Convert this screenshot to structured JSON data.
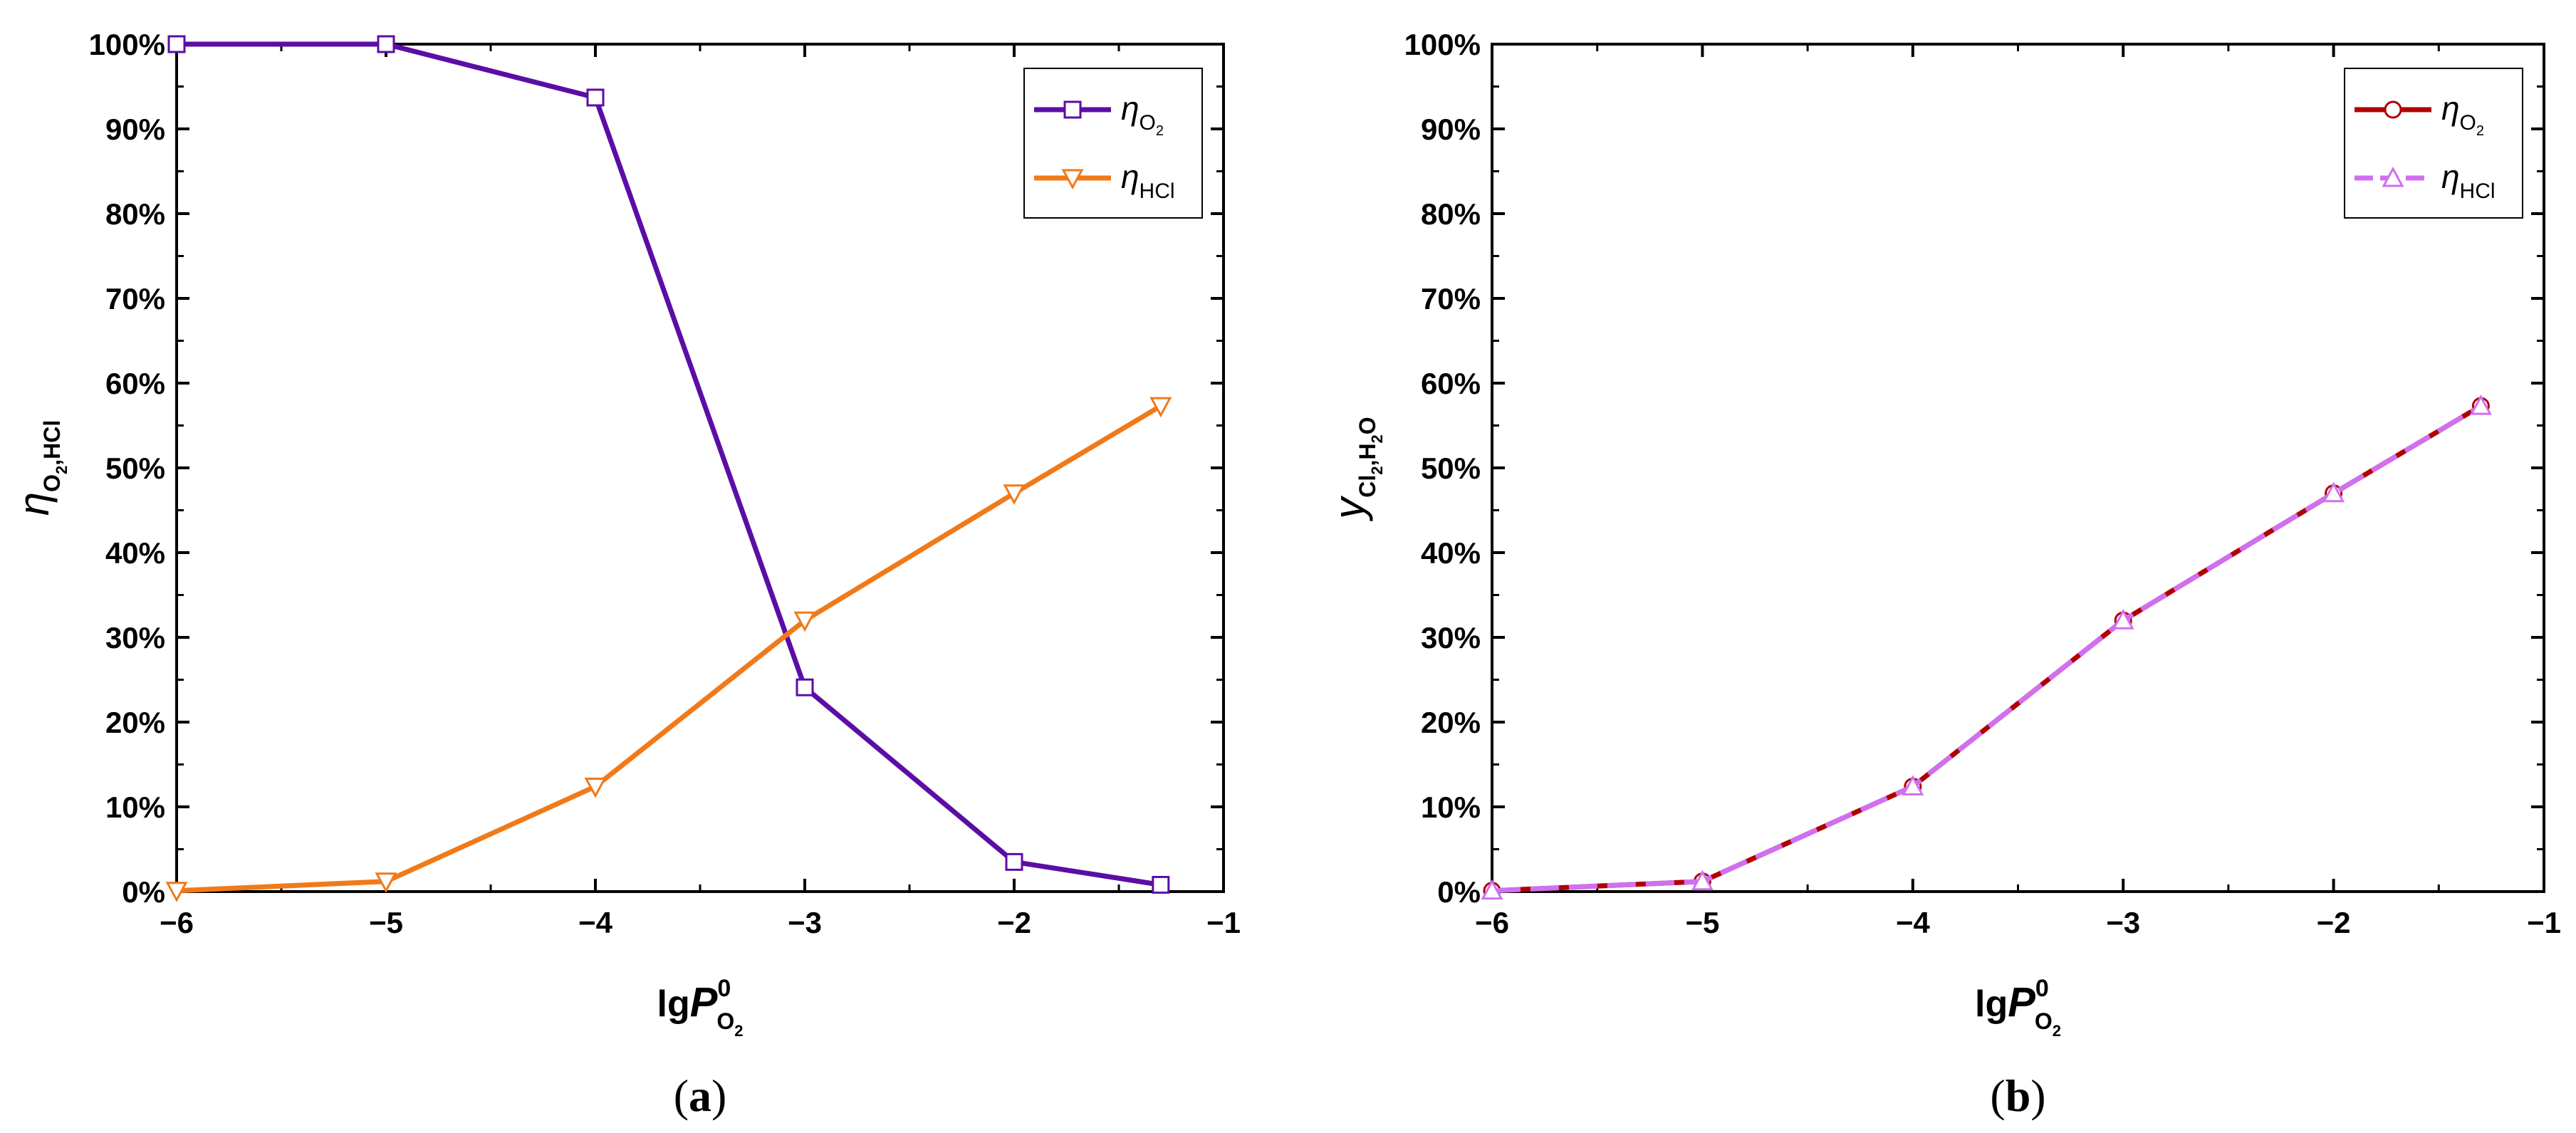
{
  "chart_data": [
    {
      "type": "line",
      "panel_label": "(a)",
      "xlabel": {
        "main": "lg",
        "var": "P",
        "sup": "0",
        "sub": "O",
        "subsub": "2"
      },
      "ylabel": {
        "sym": "η",
        "sub_a": "O",
        "sub_a_idx": "2",
        "sub_b": ",HCl"
      },
      "xlim": [
        -6,
        -1
      ],
      "ylim": [
        0,
        100
      ],
      "xticks": [
        "−6",
        "−5",
        "−4",
        "−3",
        "−2",
        "−1"
      ],
      "yticks": [
        "0%",
        "10%",
        "20%",
        "30%",
        "40%",
        "50%",
        "60%",
        "70%",
        "80%",
        "90%",
        "100%"
      ],
      "legend_position": "top-right",
      "series": [
        {
          "name": "ηO2",
          "sym": "η",
          "sub": "O",
          "subidx": "2",
          "color": "#5b0ea6",
          "marker": "square",
          "dash": "solid",
          "x": [
            -6,
            -5,
            -4,
            -3,
            -2,
            -1.3
          ],
          "values": [
            100,
            100,
            93.7,
            24.1,
            3.5,
            0.8
          ]
        },
        {
          "name": "ηHCl",
          "sym": "η",
          "sub": "HCl",
          "subidx": "",
          "color": "#f07a1a",
          "marker": "triangle-down",
          "dash": "solid",
          "x": [
            -6,
            -5,
            -4,
            -3,
            -2,
            -1.3
          ],
          "values": [
            0.1,
            1.2,
            12.4,
            32.0,
            47.0,
            57.3
          ]
        }
      ]
    },
    {
      "type": "line",
      "panel_label": "(b)",
      "xlabel": {
        "main": "lg",
        "var": "P",
        "sup": "0",
        "sub": "O",
        "subsub": "2"
      },
      "ylabel": {
        "sym": "y",
        "sub_a": "Cl",
        "sub_a_idx": "2",
        "sub_b": ",H",
        "sub_b_idx": "2",
        "sub_c": "O"
      },
      "xlim": [
        -6,
        -1
      ],
      "ylim": [
        0,
        100
      ],
      "xticks": [
        "−6",
        "−5",
        "−4",
        "−3",
        "−2",
        "−1"
      ],
      "yticks": [
        "0%",
        "10%",
        "20%",
        "30%",
        "40%",
        "50%",
        "60%",
        "70%",
        "80%",
        "90%",
        "100%"
      ],
      "legend_position": "top-right",
      "series": [
        {
          "name": "ηO2",
          "sym": "η",
          "sub": "O",
          "subidx": "2",
          "color": "#b00000",
          "marker": "circle",
          "dash": "solid",
          "x": [
            -6,
            -5,
            -4,
            -3,
            -2,
            -1.3
          ],
          "values": [
            0.1,
            1.2,
            12.4,
            32.0,
            47.0,
            57.3
          ]
        },
        {
          "name": "ηHCl",
          "sym": "η",
          "sub": "HCl",
          "subidx": "",
          "color": "#d070f0",
          "marker": "triangle-up",
          "dash": "dashed",
          "x": [
            -6,
            -5,
            -4,
            -3,
            -2,
            -1.3
          ],
          "values": [
            0.1,
            1.2,
            12.4,
            32.0,
            47.0,
            57.3
          ]
        }
      ]
    }
  ]
}
